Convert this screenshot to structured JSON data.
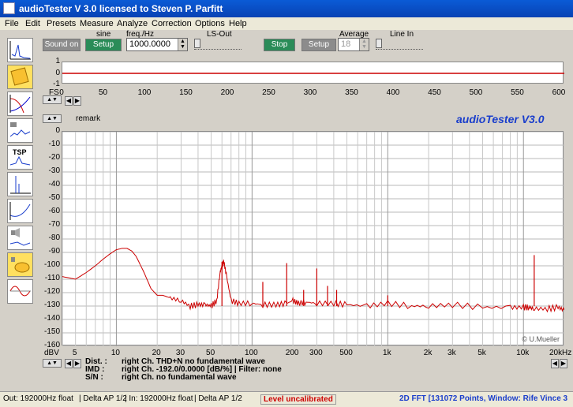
{
  "window": {
    "title": "audioTester  V 3.0    licensed to Steven P. Parfitt"
  },
  "menu": [
    "File",
    "Edit",
    "Presets",
    "Measure",
    "Analyze",
    "Correction",
    "Options",
    "Help"
  ],
  "toolbar": {
    "sound_on_label": "Sound on",
    "setup_left_label": "Setup",
    "signal_label": "sine",
    "freq_label": "freq./Hz",
    "freq_value": "1000.0000",
    "ls_out_label": "LS-Out",
    "stop_label": "Stop",
    "setup_right_label": "Setup",
    "average_label": "Average",
    "average_value": "18",
    "line_in_label": "Line In"
  },
  "colors": {
    "trace": "#cc0000",
    "brand": "#1a3ecc",
    "status_warning": "#cc0000"
  },
  "tools": [
    "scope-tool-icon",
    "notepad-tool-icon",
    "filter-curves-tool-icon",
    "spectrum-tool-icon",
    "tsp-tool-icon",
    "impulse-tool-icon",
    "response-tool-icon",
    "speaker-tool-icon",
    "speaker-network-tool-icon",
    "sine-tool-icon"
  ],
  "top_plot": {
    "y_labels": [
      "1",
      "0",
      "-1"
    ],
    "x_prefix": "FS",
    "x_labels": [
      "0",
      "50",
      "100",
      "150",
      "200",
      "250",
      "300",
      "350",
      "400",
      "450",
      "500",
      "550",
      "600"
    ]
  },
  "main_plot": {
    "remark_label": "remark",
    "brand_text": "audioTester V3.0",
    "y_unit": "dBV",
    "x_unit": "Hz",
    "watermark": "© U.Mueller",
    "y_labels": [
      "0",
      "-10",
      "-20",
      "-30",
      "-40",
      "-50",
      "-60",
      "-70",
      "-80",
      "-90",
      "-100",
      "-110",
      "-120",
      "-130",
      "-140",
      "-150",
      "-160"
    ],
    "x_labels": [
      "5",
      "10",
      "20",
      "30",
      "50",
      "100",
      "200",
      "300",
      "500",
      "1k",
      "2k",
      "3k",
      "5k",
      "10k",
      "20k"
    ]
  },
  "chart_data": {
    "type": "line",
    "x_scale": "log",
    "xlim": [
      4,
      20000
    ],
    "ylim": [
      -160,
      0
    ],
    "ylabel": "dBV",
    "xlabel": "Hz",
    "grid": true,
    "series": [
      {
        "x": [
          4,
          5,
          6,
          7,
          8,
          9,
          10,
          11,
          12,
          13,
          14,
          16,
          18,
          20,
          22,
          25,
          30,
          35,
          40,
          45,
          50,
          55,
          58,
          60,
          62,
          65,
          70,
          80,
          100,
          120,
          150,
          180,
          200,
          220,
          250,
          300,
          400,
          500,
          700,
          1000,
          1500,
          2000,
          3000,
          5000,
          8000,
          10000,
          11000,
          12000,
          15000,
          18000,
          20000
        ],
        "y": [
          -108,
          -110,
          -105,
          -100,
          -95,
          -91,
          -88,
          -87,
          -87,
          -89,
          -93,
          -105,
          -117,
          -122,
          -122,
          -124,
          -126,
          -130,
          -129,
          -129,
          -130,
          -126,
          -105,
          -100,
          -97,
          -108,
          -126,
          -128,
          -128,
          -129,
          -129,
          -128,
          -126,
          -128,
          -127,
          -128,
          -128,
          -129,
          -130,
          -128,
          -130,
          -130,
          -129,
          -131,
          -131,
          -131,
          -131,
          -132,
          -132,
          -131,
          -133
        ]
      }
    ],
    "peaks": [
      {
        "x": 60,
        "y": -97
      },
      {
        "x": 120,
        "y": -112
      },
      {
        "x": 180,
        "y": -98
      },
      {
        "x": 240,
        "y": -118
      },
      {
        "x": 300,
        "y": -102
      },
      {
        "x": 360,
        "y": -115
      },
      {
        "x": 420,
        "y": -118
      },
      {
        "x": 1000,
        "y": -122
      },
      {
        "x": 12000,
        "y": -92
      }
    ]
  },
  "readout": {
    "dist_label": "Dist. :",
    "dist_value": "right Ch. THD+N  no fundamental wave",
    "imd_label": "IMD :",
    "imd_value": "right Ch. -192.0/0.0000 [dB/%]  |   Filter: none",
    "sn_label": "S/N :",
    "sn_value": "right Ch.  no fundamental wave"
  },
  "status": {
    "out": "Out: 192000Hz float",
    "delta1": "| Delta AP 1/2",
    "in": "| In: 192000Hz float",
    "delta2": "| Delta AP 1/2",
    "level": "Level uncalibrated",
    "fft": "2D FFT [131072 Points, Window: Rife Vince 3"
  }
}
